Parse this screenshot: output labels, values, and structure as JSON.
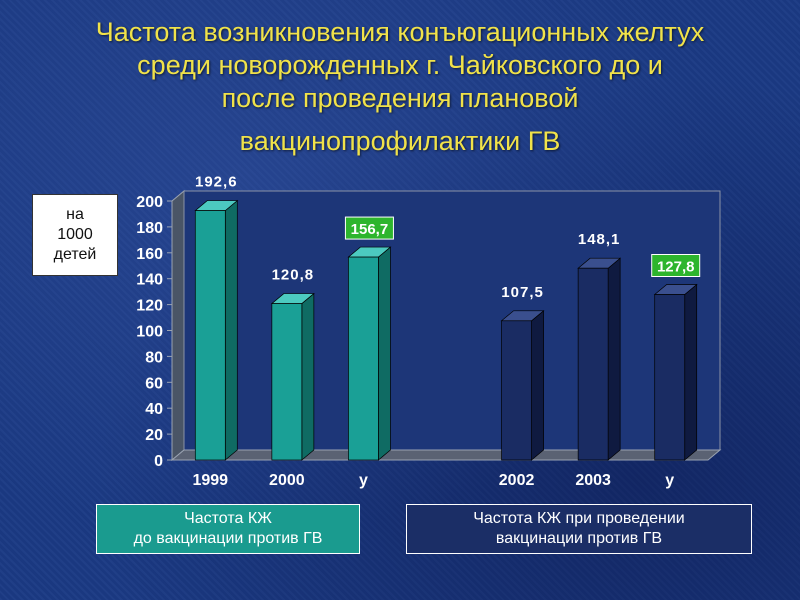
{
  "title": {
    "line1": "Частота возникновения конъюгационных желтух",
    "line2": "среди новорожденных г. Чайковского до и",
    "line3": "после проведения плановой",
    "line4": "вакцинопрофилактики ГВ"
  },
  "unit": {
    "line1": "на",
    "line2": "1000",
    "line3": "детей"
  },
  "legend": {
    "before": {
      "line1": "Частота КЖ",
      "line2": "до вакцинации против ГВ"
    },
    "after": {
      "line1": "Частота КЖ при проведении",
      "line2": "вакцинации  против ГВ"
    }
  },
  "colors": {
    "teal": "#1aa096",
    "navy": "#1a2c63",
    "highlight": "#2db52d",
    "axis_text": "#ffffff"
  },
  "chart_data": {
    "type": "bar",
    "categories": [
      "1999",
      "2000",
      "у",
      "",
      "2002",
      "2003",
      "у"
    ],
    "values": [
      192.6,
      120.8,
      156.7,
      null,
      107.5,
      148.1,
      127.8
    ],
    "labels": [
      "192,6",
      "120,8",
      "156,7",
      "",
      "107,5",
      "148,1",
      "127,8"
    ],
    "highlighted": [
      false,
      false,
      true,
      false,
      false,
      false,
      true
    ],
    "groups": [
      "before",
      "before",
      "before",
      null,
      "after",
      "after",
      "after"
    ],
    "yticks": [
      0,
      20,
      40,
      60,
      80,
      100,
      120,
      140,
      160,
      180,
      200
    ],
    "ylim": [
      0,
      200
    ],
    "grid": false,
    "legend_position": "bottom"
  }
}
